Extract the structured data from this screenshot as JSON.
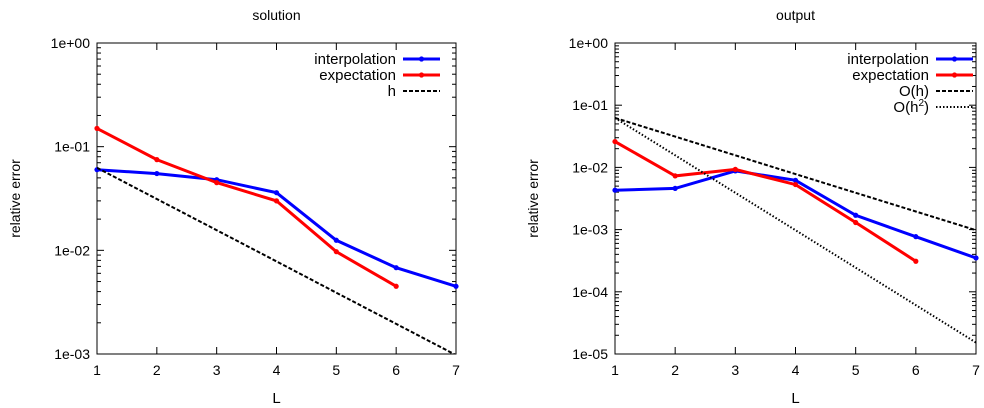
{
  "chart_data": [
    {
      "type": "line",
      "title": "solution",
      "xlabel": "L",
      "ylabel": "relative error",
      "yscale": "log",
      "xlim": [
        1,
        7
      ],
      "ylim": [
        0.001,
        1
      ],
      "x_ticks": [
        "1",
        "2",
        "3",
        "4",
        "5",
        "6",
        "7"
      ],
      "y_ticks": [
        "1e-03",
        "1e-02",
        "1e-01",
        "1e+00"
      ],
      "legend": "top-right",
      "series": [
        {
          "name": "interpolation",
          "color": "#0000ff",
          "style": "solid-points",
          "x": [
            1,
            2,
            3,
            4,
            5,
            6,
            7
          ],
          "y": [
            0.06,
            0.055,
            0.048,
            0.036,
            0.0125,
            0.0068,
            0.0045
          ]
        },
        {
          "name": "expectation",
          "color": "#ff0000",
          "style": "solid-points",
          "x": [
            1,
            2,
            3,
            4,
            5,
            6
          ],
          "y": [
            0.15,
            0.075,
            0.045,
            0.03,
            0.0097,
            0.0045
          ]
        },
        {
          "name": "h",
          "color": "#000000",
          "style": "dashed",
          "x": [
            1,
            2,
            3,
            4,
            5,
            6,
            7
          ],
          "y": [
            0.0625,
            0.03125,
            0.015625,
            0.0078125,
            0.00390625,
            0.001953125,
            0.0009765625
          ]
        }
      ]
    },
    {
      "type": "line",
      "title": "output",
      "xlabel": "L",
      "ylabel": "relative error",
      "yscale": "log",
      "xlim": [
        1,
        7
      ],
      "ylim": [
        1e-05,
        1
      ],
      "x_ticks": [
        "1",
        "2",
        "3",
        "4",
        "5",
        "6",
        "7"
      ],
      "y_ticks": [
        "1e-05",
        "1e-04",
        "1e-03",
        "1e-02",
        "1e-01",
        "1e+00"
      ],
      "legend": "top-right",
      "series": [
        {
          "name": "interpolation",
          "color": "#0000ff",
          "style": "solid-points",
          "x": [
            1,
            2,
            3,
            4,
            5,
            6,
            7
          ],
          "y": [
            0.0043,
            0.0046,
            0.0088,
            0.0062,
            0.0017,
            0.00077,
            0.00035
          ]
        },
        {
          "name": "expectation",
          "color": "#ff0000",
          "style": "solid-points",
          "x": [
            1,
            2,
            3,
            4,
            5,
            6
          ],
          "y": [
            0.026,
            0.0073,
            0.0093,
            0.0053,
            0.0013,
            0.00031
          ]
        },
        {
          "name": "O(h)",
          "color": "#000000",
          "style": "dashed",
          "x": [
            1,
            2,
            3,
            4,
            5,
            6,
            7
          ],
          "y": [
            0.0625,
            0.03125,
            0.015625,
            0.0078125,
            0.00390625,
            0.001953125,
            0.0009765625
          ]
        },
        {
          "name": "O(h2)",
          "legend_base": "O(h",
          "legend_sup": "2",
          "legend_tail": ")",
          "color": "#000000",
          "style": "dotted",
          "x": [
            1,
            2,
            3,
            4,
            5,
            6,
            7
          ],
          "y": [
            0.0625,
            0.015625,
            0.00390625,
            0.0009765625,
            0.000244140625,
            6.103515625e-05,
            1.52587890625e-05
          ]
        }
      ]
    }
  ]
}
